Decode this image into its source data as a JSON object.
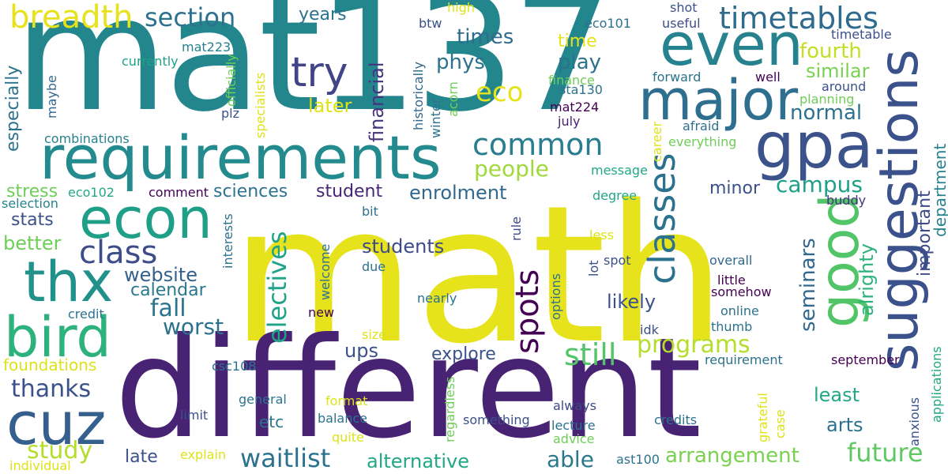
{
  "cloud": {
    "words": [
      {
        "text": "math",
        "color": "#e6e21c"
      },
      {
        "text": "mat137",
        "color": "#23868d"
      },
      {
        "text": "different",
        "color": "#482273"
      },
      {
        "text": "requirements",
        "color": "#238a8d"
      },
      {
        "text": "major",
        "color": "#2e6e8e"
      },
      {
        "text": "even",
        "color": "#26828e"
      },
      {
        "text": "gpa",
        "color": "#3b528b"
      },
      {
        "text": "suggestions",
        "color": "#3b518b"
      },
      {
        "text": "good",
        "color": "#52c569"
      },
      {
        "text": "econ",
        "color": "#1f9f88"
      },
      {
        "text": "bird",
        "color": "#2db27d"
      },
      {
        "text": "cuz",
        "color": "#35608d"
      },
      {
        "text": "thx",
        "color": "#21918c"
      },
      {
        "text": "timetables",
        "color": "#2f6b8e"
      },
      {
        "text": "breadth",
        "color": "#e6e21c"
      },
      {
        "text": "section",
        "color": "#2c728e"
      },
      {
        "text": "try",
        "color": "#414487"
      },
      {
        "text": "common",
        "color": "#287d8e"
      },
      {
        "text": "class",
        "color": "#3e4c8a"
      },
      {
        "text": "classes",
        "color": "#2c728e"
      },
      {
        "text": "spots",
        "color": "#440154"
      },
      {
        "text": "still",
        "color": "#52c569"
      },
      {
        "text": "programs",
        "color": "#b5de2b"
      },
      {
        "text": "waitlist",
        "color": "#2c728e"
      },
      {
        "text": "future",
        "color": "#5ec962"
      },
      {
        "text": "thanks",
        "color": "#3b518b"
      },
      {
        "text": "study",
        "color": "#b5de2b"
      },
      {
        "text": "able",
        "color": "#2a788e"
      },
      {
        "text": "arrangement",
        "color": "#7ad151"
      },
      {
        "text": "alternative",
        "color": "#22a884"
      },
      {
        "text": "eco",
        "color": "#e6e21c"
      },
      {
        "text": "people",
        "color": "#9fda3a"
      },
      {
        "text": "campus",
        "color": "#1fa088"
      },
      {
        "text": "fall",
        "color": "#2b748e"
      },
      {
        "text": "worst",
        "color": "#2c728e"
      },
      {
        "text": "website",
        "color": "#35608d"
      },
      {
        "text": "calendar",
        "color": "#2a788e"
      },
      {
        "text": "students",
        "color": "#3e4a89"
      },
      {
        "text": "electives",
        "color": "#20a386"
      },
      {
        "text": "seminars",
        "color": "#31688e"
      },
      {
        "text": "alrighty",
        "color": "#2db27d"
      },
      {
        "text": "important",
        "color": "#3e4a89"
      },
      {
        "text": "department",
        "color": "#26828e"
      },
      {
        "text": "fourth",
        "color": "#c2df23"
      },
      {
        "text": "similar",
        "color": "#7ad151"
      },
      {
        "text": "normal",
        "color": "#2c728e"
      },
      {
        "text": "times",
        "color": "#2f6c8e"
      },
      {
        "text": "phys",
        "color": "#2c728e"
      },
      {
        "text": "play",
        "color": "#2c728e"
      },
      {
        "text": "later",
        "color": "#dde318"
      },
      {
        "text": "years",
        "color": "#2c728e"
      },
      {
        "text": "time",
        "color": "#e6e21c"
      },
      {
        "text": "financial",
        "color": "#46337e"
      },
      {
        "text": "student",
        "color": "#482575"
      },
      {
        "text": "enrolment",
        "color": "#31688e"
      },
      {
        "text": "sciences",
        "color": "#2c728e"
      },
      {
        "text": "minor",
        "color": "#3b518b"
      },
      {
        "text": "likely",
        "color": "#3b518b"
      },
      {
        "text": "stats",
        "color": "#3b518b"
      },
      {
        "text": "stress",
        "color": "#6ece58"
      },
      {
        "text": "better",
        "color": "#6ece58"
      },
      {
        "text": "especially",
        "color": "#2c728e"
      },
      {
        "text": "explore",
        "color": "#3b518b"
      },
      {
        "text": "ups",
        "color": "#3b518b"
      },
      {
        "text": "least",
        "color": "#22a884"
      },
      {
        "text": "arts",
        "color": "#2c728e"
      },
      {
        "text": "late",
        "color": "#3b518b"
      },
      {
        "text": "etc",
        "color": "#2c728e"
      },
      {
        "text": "foundations",
        "color": "#dde318"
      },
      {
        "text": "currently",
        "color": "#1fa088"
      },
      {
        "text": "combinations",
        "color": "#26828e"
      },
      {
        "text": "selection",
        "color": "#26828e"
      },
      {
        "text": "eco102",
        "color": "#22a884"
      },
      {
        "text": "comment",
        "color": "#440154"
      },
      {
        "text": "credit",
        "color": "#2c728e"
      },
      {
        "text": "maybe",
        "color": "#31688e"
      },
      {
        "text": "plz",
        "color": "#3b528b"
      },
      {
        "text": "specialists",
        "color": "#dde318"
      },
      {
        "text": "officially",
        "color": "#6ece58"
      },
      {
        "text": "mat223",
        "color": "#26828e"
      },
      {
        "text": "btw",
        "color": "#3b518b"
      },
      {
        "text": "high",
        "color": "#dde318"
      },
      {
        "text": "eco101",
        "color": "#2c728e"
      },
      {
        "text": "shot",
        "color": "#3b518b"
      },
      {
        "text": "useful",
        "color": "#3e4a89"
      },
      {
        "text": "timetable",
        "color": "#3b518b"
      },
      {
        "text": "historically",
        "color": "#31688e"
      },
      {
        "text": "winter",
        "color": "#2c728e"
      },
      {
        "text": "acorn",
        "color": "#6ece58"
      },
      {
        "text": "finance",
        "color": "#6ece58"
      },
      {
        "text": "sta130",
        "color": "#2c728e"
      },
      {
        "text": "mat224",
        "color": "#440154"
      },
      {
        "text": "july",
        "color": "#482173"
      },
      {
        "text": "forward",
        "color": "#2c728e"
      },
      {
        "text": "well",
        "color": "#440154"
      },
      {
        "text": "around",
        "color": "#3b518b"
      },
      {
        "text": "planning",
        "color": "#6ece58"
      },
      {
        "text": "afraid",
        "color": "#2c728e"
      },
      {
        "text": "everything",
        "color": "#6ece58"
      },
      {
        "text": "career",
        "color": "#dde318"
      },
      {
        "text": "message",
        "color": "#22a884"
      },
      {
        "text": "degree",
        "color": "#22a884"
      },
      {
        "text": "buddy",
        "color": "#46337e"
      },
      {
        "text": "rule",
        "color": "#3e4a89"
      },
      {
        "text": "bit",
        "color": "#2c728e"
      },
      {
        "text": "interests",
        "color": "#2c728e"
      },
      {
        "text": "welcome",
        "color": "#2c728e"
      },
      {
        "text": "due",
        "color": "#2c728e"
      },
      {
        "text": "less",
        "color": "#dde318"
      },
      {
        "text": "lot",
        "color": "#3b518b"
      },
      {
        "text": "spot",
        "color": "#3b518b"
      },
      {
        "text": "options",
        "color": "#2c728e"
      },
      {
        "text": "overall",
        "color": "#31688e"
      },
      {
        "text": "little",
        "color": "#440154"
      },
      {
        "text": "somehow",
        "color": "#440154"
      },
      {
        "text": "online",
        "color": "#2c728e"
      },
      {
        "text": "thumb",
        "color": "#2c728e"
      },
      {
        "text": "idk",
        "color": "#3b518b"
      },
      {
        "text": "nearly",
        "color": "#2c728e"
      },
      {
        "text": "new",
        "color": "#440154"
      },
      {
        "text": "size",
        "color": "#dde318"
      },
      {
        "text": "requirement",
        "color": "#2c728e"
      },
      {
        "text": "september",
        "color": "#440154"
      },
      {
        "text": "applications",
        "color": "#22a884"
      },
      {
        "text": "anxious",
        "color": "#3b518b"
      },
      {
        "text": "csc108",
        "color": "#2c728e"
      },
      {
        "text": "general",
        "color": "#2c728e"
      },
      {
        "text": "format",
        "color": "#dde318"
      },
      {
        "text": "always",
        "color": "#3e4a89"
      },
      {
        "text": "limit",
        "color": "#3b518b"
      },
      {
        "text": "balance",
        "color": "#2c728e"
      },
      {
        "text": "regardless",
        "color": "#6ece58"
      },
      {
        "text": "something",
        "color": "#3b518b"
      },
      {
        "text": "lecture",
        "color": "#2c728e"
      },
      {
        "text": "credits",
        "color": "#2c728e"
      },
      {
        "text": "grateful",
        "color": "#dde318"
      },
      {
        "text": "case",
        "color": "#dde318"
      },
      {
        "text": "quite",
        "color": "#dde318"
      },
      {
        "text": "advice",
        "color": "#6ece58"
      },
      {
        "text": "explain",
        "color": "#dde318"
      },
      {
        "text": "individual",
        "color": "#dde318"
      },
      {
        "text": "ast100",
        "color": "#2c728e"
      }
    ]
  }
}
